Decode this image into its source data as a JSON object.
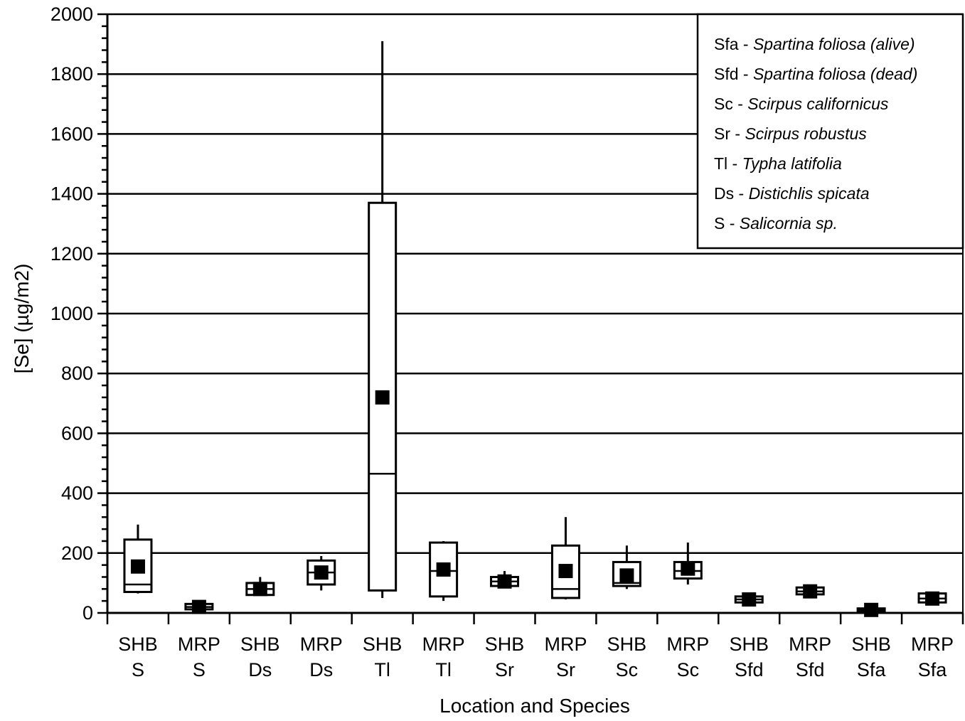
{
  "chart_data": {
    "type": "box",
    "xlabel": "Location and Species",
    "ylabel": "[Se] (µg/m2)",
    "ylim": [
      0,
      2000
    ],
    "yticks": [
      0,
      200,
      400,
      600,
      800,
      1000,
      1200,
      1400,
      1600,
      1800,
      2000
    ],
    "grid": true,
    "legend_position": "top-right",
    "categories": [
      {
        "line1": "SHB",
        "line2": "S"
      },
      {
        "line1": "MRP",
        "line2": "S"
      },
      {
        "line1": "SHB",
        "line2": "Ds"
      },
      {
        "line1": "MRP",
        "line2": "Ds"
      },
      {
        "line1": "SHB",
        "line2": "Tl"
      },
      {
        "line1": "MRP",
        "line2": "Tl"
      },
      {
        "line1": "SHB",
        "line2": "Sr"
      },
      {
        "line1": "MRP",
        "line2": "Sr"
      },
      {
        "line1": "SHB",
        "line2": "Sc"
      },
      {
        "line1": "MRP",
        "line2": "Sc"
      },
      {
        "line1": "SHB",
        "line2": "Sfd"
      },
      {
        "line1": "MRP",
        "line2": "Sfd"
      },
      {
        "line1": "SHB",
        "line2": "Sfa"
      },
      {
        "line1": "MRP",
        "line2": "Sfa"
      }
    ],
    "boxes": [
      {
        "min": 65,
        "q1": 70,
        "median": 95,
        "q3": 245,
        "max": 295,
        "mean": 155
      },
      {
        "min": 10,
        "q1": 12,
        "median": 20,
        "q3": 30,
        "max": 35,
        "mean": 20
      },
      {
        "min": 60,
        "q1": 60,
        "median": 80,
        "q3": 100,
        "max": 120,
        "mean": 80
      },
      {
        "min": 75,
        "q1": 95,
        "median": 135,
        "q3": 175,
        "max": 190,
        "mean": 135
      },
      {
        "min": 50,
        "q1": 75,
        "median": 465,
        "q3": 1370,
        "max": 1910,
        "mean": 720
      },
      {
        "min": 40,
        "q1": 55,
        "median": 140,
        "q3": 235,
        "max": 240,
        "mean": 145
      },
      {
        "min": 85,
        "q1": 90,
        "median": 105,
        "q3": 120,
        "max": 140,
        "mean": 105
      },
      {
        "min": 45,
        "q1": 50,
        "median": 80,
        "q3": 225,
        "max": 320,
        "mean": 140
      },
      {
        "min": 80,
        "q1": 90,
        "median": 100,
        "q3": 170,
        "max": 225,
        "mean": 125
      },
      {
        "min": 95,
        "q1": 115,
        "median": 140,
        "q3": 170,
        "max": 235,
        "mean": 148
      },
      {
        "min": 30,
        "q1": 35,
        "median": 45,
        "q3": 55,
        "max": 60,
        "mean": 45
      },
      {
        "min": 60,
        "q1": 62,
        "median": 72,
        "q3": 85,
        "max": 95,
        "mean": 72
      },
      {
        "min": 3,
        "q1": 5,
        "median": 10,
        "q3": 15,
        "max": 20,
        "mean": 10
      },
      {
        "min": 35,
        "q1": 35,
        "median": 48,
        "q3": 65,
        "max": 65,
        "mean": 48
      }
    ],
    "legend": [
      {
        "code": "Sfa -",
        "name": "Spartina foliosa (alive)"
      },
      {
        "code": "Sfd -",
        "name": "Spartina foliosa (dead)"
      },
      {
        "code": "Sc -",
        "name": "Scirpus californicus"
      },
      {
        "code": "Sr -",
        "name": "Scirpus robustus"
      },
      {
        "code": "Tl -",
        "name": "Typha latifolia"
      },
      {
        "code": "Ds -",
        "name": "Distichlis spicata"
      },
      {
        "code": "S -",
        "name": "Salicornia sp."
      }
    ]
  }
}
